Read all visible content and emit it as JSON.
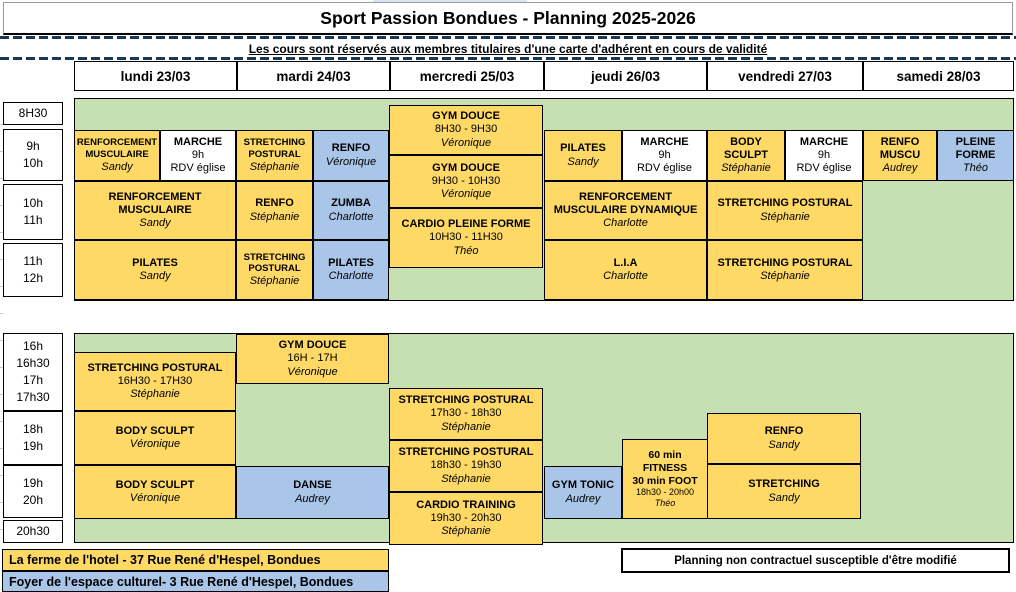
{
  "title": "Sport Passion Bondues - Planning 2025-2026",
  "subtitle": "Les cours sont réservés aux membres titulaires d'une carte d'adhérent en cours de validité",
  "days": [
    "lundi 23/03",
    "mardi 24/03",
    "mercredi 25/03",
    "jeudi 26/03",
    "vendredi 27/03",
    "samedi 28/03"
  ],
  "times": {
    "morning": [
      [
        "8H30"
      ],
      [
        "9h",
        "10h"
      ],
      [
        "10h",
        "11h"
      ],
      [
        "11h",
        "12h"
      ]
    ],
    "afternoon": [
      [
        "16h",
        "16h30",
        "17h",
        "17h30"
      ],
      [
        "18h",
        "19h"
      ],
      [
        "19h",
        "20h"
      ],
      [
        "20h30"
      ]
    ]
  },
  "classes": [
    {
      "day": "lundi",
      "period": "9h-10h",
      "title": "RENFORCEMENT MUSCULAIRE",
      "instructor": "Sandy",
      "venue": "ferme"
    },
    {
      "day": "lundi",
      "period": "9h-10h",
      "title": "MARCHE",
      "time": "9h",
      "note": "RDV église",
      "venue": null
    },
    {
      "day": "mardi",
      "period": "9h-10h",
      "title": "STRETCHING POSTURAL",
      "instructor": "Stéphanie",
      "venue": "ferme"
    },
    {
      "day": "mardi",
      "period": "9h-10h",
      "title": "RENFO",
      "instructor": "Véronique",
      "venue": "foyer"
    },
    {
      "day": "mercredi",
      "period": "8h30-9h30",
      "title": "GYM DOUCE",
      "time": "8H30 - 9H30",
      "instructor": "Véronique",
      "venue": "ferme"
    },
    {
      "day": "mercredi",
      "period": "9h30-10h30",
      "title": "GYM DOUCE",
      "time": "9H30 - 10H30",
      "instructor": "Véronique",
      "venue": "ferme"
    },
    {
      "day": "mercredi",
      "period": "10h30-11h30",
      "title": "CARDIO PLEINE FORME",
      "time": "10H30 - 11H30",
      "instructor": "Théo",
      "venue": "ferme"
    },
    {
      "day": "jeudi",
      "period": "9h-10h",
      "title": "PILATES",
      "instructor": "Sandy",
      "venue": "ferme"
    },
    {
      "day": "jeudi",
      "period": "9h-10h",
      "title": "MARCHE",
      "time": "9h",
      "note": "RDV église",
      "venue": null
    },
    {
      "day": "vendredi",
      "period": "9h-10h",
      "title": "BODY SCULPT",
      "instructor": "Stéphanie",
      "venue": "ferme"
    },
    {
      "day": "vendredi",
      "period": "9h-10h",
      "title": "MARCHE",
      "time": "9h",
      "note": "RDV église",
      "venue": null
    },
    {
      "day": "samedi",
      "period": "9h-10h",
      "title": "RENFO MUSCU",
      "instructor": "Audrey",
      "venue": "ferme"
    },
    {
      "day": "samedi",
      "period": "9h-10h",
      "title": "PLEINE FORME",
      "instructor": "Théo",
      "venue": "foyer"
    },
    {
      "day": "lundi",
      "period": "10h-11h",
      "title": "RENFORCEMENT MUSCULAIRE",
      "instructor": "Sandy",
      "venue": "ferme"
    },
    {
      "day": "mardi",
      "period": "10h-11h",
      "title": "RENFO",
      "instructor": "Stéphanie",
      "venue": "ferme"
    },
    {
      "day": "mardi",
      "period": "10h-11h",
      "title": "ZUMBA",
      "instructor": "Charlotte",
      "venue": "foyer"
    },
    {
      "day": "jeudi",
      "period": "10h-11h",
      "title": "RENFORCEMENT MUSCULAIRE DYNAMIQUE",
      "instructor": "Charlotte",
      "venue": "ferme"
    },
    {
      "day": "vendredi",
      "period": "10h-11h",
      "title": "STRETCHING POSTURAL",
      "instructor": "Stéphanie",
      "venue": "ferme"
    },
    {
      "day": "lundi",
      "period": "11h-12h",
      "title": "PILATES",
      "instructor": "Sandy",
      "venue": "ferme"
    },
    {
      "day": "mardi",
      "period": "11h-12h",
      "title": "STRETCHING POSTURAL",
      "instructor": "Stéphanie",
      "venue": "ferme"
    },
    {
      "day": "mardi",
      "period": "11h-12h",
      "title": "PILATES",
      "instructor": "Charlotte",
      "venue": "foyer"
    },
    {
      "day": "jeudi",
      "period": "11h-12h",
      "title": "L.I.A",
      "instructor": "Charlotte",
      "venue": "ferme"
    },
    {
      "day": "vendredi",
      "period": "11h-12h",
      "title": "STRETCHING POSTURAL",
      "instructor": "Stéphanie",
      "venue": "ferme"
    },
    {
      "day": "lundi",
      "period": "16h30-17h30",
      "title": "STRETCHING POSTURAL",
      "time": "16H30 - 17H30",
      "instructor": "Stéphanie",
      "venue": "ferme"
    },
    {
      "day": "mardi",
      "period": "16h-17h",
      "title": "GYM DOUCE",
      "time": "16H - 17H",
      "instructor": "Véronique",
      "venue": "ferme"
    },
    {
      "day": "lundi",
      "period": "18h-19h",
      "title": "BODY SCULPT",
      "instructor": "Véronique",
      "venue": "ferme"
    },
    {
      "day": "lundi",
      "period": "19h-20h",
      "title": "BODY SCULPT",
      "instructor": "Véronique",
      "venue": "ferme"
    },
    {
      "day": "mardi",
      "period": "19h-20h",
      "title": "DANSE",
      "instructor": "Audrey",
      "venue": "foyer"
    },
    {
      "day": "mercredi",
      "period": "17h30-18h30",
      "title": "STRETCHING POSTURAL",
      "time": "17h30 - 18h30",
      "instructor": "Stéphanie",
      "venue": "ferme"
    },
    {
      "day": "mercredi",
      "period": "18h30-19h30",
      "title": "STRETCHING POSTURAL",
      "time": "18h30 - 19h30",
      "instructor": "Stéphanie",
      "venue": "ferme"
    },
    {
      "day": "mercredi",
      "period": "19h30-20h30",
      "title": "CARDIO TRAINING",
      "time": "19h30 - 20h30",
      "instructor": "Stéphanie",
      "venue": "ferme"
    },
    {
      "day": "jeudi",
      "period": "19h-20h",
      "title": "GYM TONIC",
      "instructor": "Audrey",
      "venue": "foyer"
    },
    {
      "day": "jeudi",
      "period": "18h30-20h00",
      "title": "60 min FITNESS",
      "title2": "30 min FOOT",
      "time": "18h30 - 20h00",
      "instructor": "Théo",
      "venue": "ferme"
    },
    {
      "day": "vendredi",
      "period": "18h-19h",
      "title": "RENFO",
      "instructor": "Sandy",
      "venue": "ferme"
    },
    {
      "day": "vendredi",
      "period": "19h-20h",
      "title": "STRETCHING",
      "instructor": "Sandy",
      "venue": "ferme"
    }
  ],
  "legend": {
    "ferme": "La ferme de l'hotel - 37 Rue René d'Hespel, Bondues",
    "foyer": "Foyer de l'espace culturel- 3 Rue René d'Hespel, Bondues"
  },
  "note": "Planning non contractuel susceptible d'être modifié",
  "colors": {
    "class_yellow": "#FFD966",
    "class_blue": "#A9C5E8",
    "grid_green": "#C6E0B4",
    "dashed_line": "#17375E",
    "border_black": "#000000"
  }
}
